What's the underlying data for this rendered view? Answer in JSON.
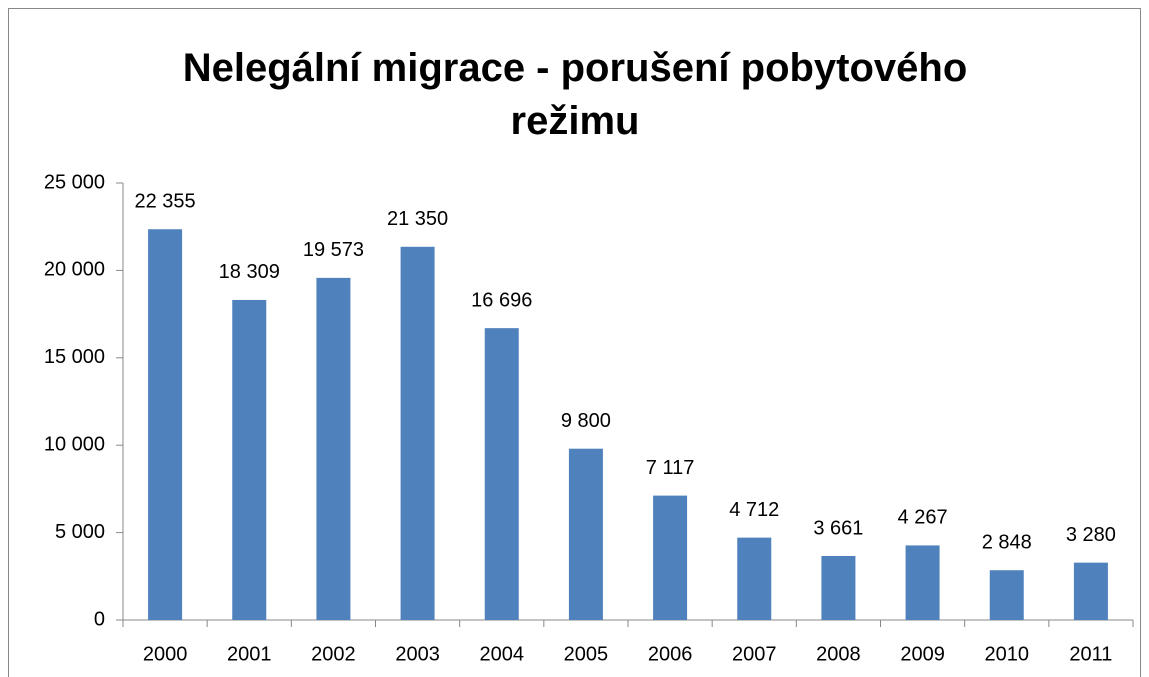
{
  "chart_data": {
    "type": "bar",
    "title": "Nelegální migrace - porušení pobytového režimu",
    "categories": [
      "2000",
      "2001",
      "2002",
      "2003",
      "2004",
      "2005",
      "2006",
      "2007",
      "2008",
      "2009",
      "2010",
      "2011"
    ],
    "values": [
      22355,
      18309,
      19573,
      21350,
      16696,
      9800,
      7117,
      4712,
      3661,
      4267,
      2848,
      3280
    ],
    "value_labels": [
      "22 355",
      "18 309",
      "19 573",
      "21 350",
      "16 696",
      "9 800",
      "7 117",
      "4 712",
      "3 661",
      "4 267",
      "2 848",
      "3 280"
    ],
    "color": "#4f81bd",
    "ylim": [
      0,
      25000
    ],
    "yticks": [
      0,
      {
        "value": 5000,
        "label": "5 000"
      },
      {
        "value": 10000,
        "label": "10 000"
      },
      {
        "value": 15000,
        "label": "15 000"
      },
      {
        "value": 20000,
        "label": "20 000"
      },
      {
        "value": 25000,
        "label": "25 000"
      }
    ],
    "grid": false
  }
}
